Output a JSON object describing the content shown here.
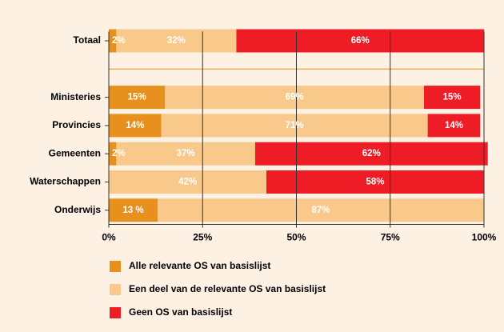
{
  "chart_data": {
    "type": "stacked-bar-horizontal",
    "categories": [
      "Totaal",
      null,
      "Ministeries",
      "Provincies",
      "Gemeenten",
      "Waterschappen",
      "Onderwijs"
    ],
    "series": [
      {
        "name": "Alle relevante OS van basislijst",
        "color": "#e8901e",
        "values": [
          2,
          null,
          15,
          14,
          2,
          null,
          13
        ],
        "value_labels": [
          "2%",
          null,
          "15%",
          "14%",
          "2%",
          null,
          "13 %"
        ]
      },
      {
        "name": "Een deel van de relevante OS van basislijst",
        "color": "#f8c98a",
        "values": [
          32,
          null,
          69,
          71,
          37,
          42,
          87
        ],
        "value_labels": [
          "32%",
          null,
          "69%",
          "71%",
          "37%",
          "42%",
          "87%"
        ]
      },
      {
        "name": "Geen OS van basislijst",
        "color": "#ee1c25",
        "values": [
          66,
          null,
          15,
          14,
          62,
          58,
          null
        ],
        "value_labels": [
          "66%",
          null,
          "15%",
          "14%",
          "62%",
          "58%",
          null
        ]
      }
    ],
    "xlim": [
      0,
      100
    ],
    "xticks": [
      {
        "value": 0,
        "label": "0%"
      },
      {
        "value": 25,
        "label": "25%"
      },
      {
        "value": 50,
        "label": "50%"
      },
      {
        "value": 75,
        "label": "75%"
      },
      {
        "value": 100,
        "label": "100%"
      }
    ],
    "grid": true
  }
}
